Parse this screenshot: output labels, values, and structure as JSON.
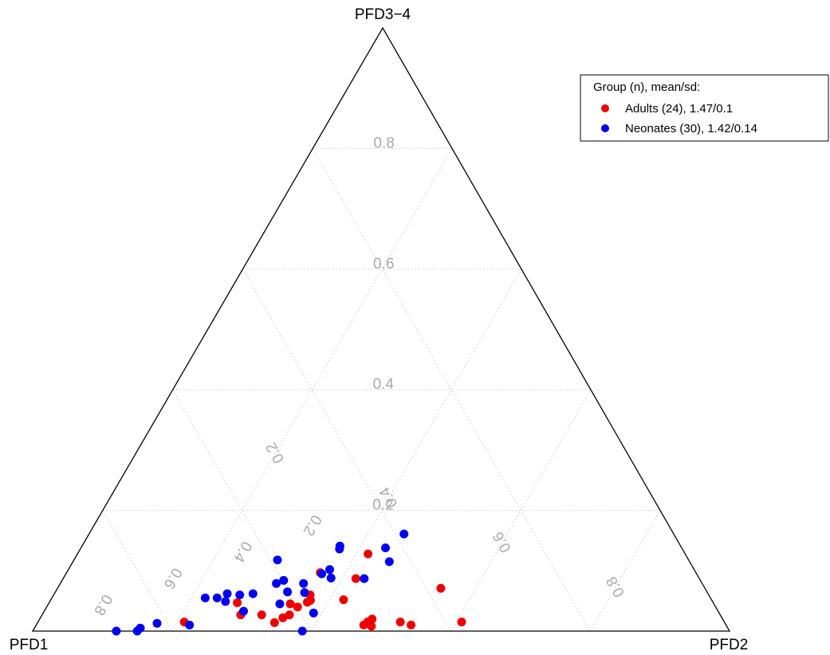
{
  "chart_data": {
    "type": "scatter",
    "subtype": "ternary",
    "vertex_labels": {
      "top": "PFD3−4",
      "left": "PFD1",
      "right": "PFD2"
    },
    "grid": true,
    "grid_levels": [
      0.2,
      0.4,
      0.6,
      0.8
    ],
    "axis_ticks": {
      "top_axis": [
        "0.2",
        "0.4",
        "0.6",
        "0.8"
      ],
      "right_axis": [
        "0.2",
        "0.4",
        "0.6",
        "0.8"
      ],
      "left_axis": [
        "0.2",
        "0.4",
        "0.6",
        "0.8"
      ]
    },
    "legend": {
      "title": "Group (n), mean/sd:",
      "position": "top-right",
      "entries": [
        {
          "label": "Adults (24), 1.47/0.1",
          "color": "#ee0000"
        },
        {
          "label": "Neonates (30), 1.42/0.14",
          "color": "#0000ee"
        }
      ]
    },
    "series": [
      {
        "name": "Adults (24), 1.47/0.1",
        "color": "#ee0000",
        "points": [
          {
            "pfd2": 0.21,
            "pfd34": 0.015
          },
          {
            "pfd2": 0.27,
            "pfd34": 0.047
          },
          {
            "pfd2": 0.285,
            "pfd34": 0.027
          },
          {
            "pfd2": 0.315,
            "pfd34": 0.027
          },
          {
            "pfd2": 0.34,
            "pfd34": 0.014
          },
          {
            "pfd2": 0.347,
            "pfd34": 0.045
          },
          {
            "pfd2": 0.348,
            "pfd34": 0.022
          },
          {
            "pfd2": 0.355,
            "pfd34": 0.027
          },
          {
            "pfd2": 0.36,
            "pfd34": 0.04
          },
          {
            "pfd2": 0.368,
            "pfd34": 0.06
          },
          {
            "pfd2": 0.37,
            "pfd34": 0.048
          },
          {
            "pfd2": 0.373,
            "pfd34": 0.051
          },
          {
            "pfd2": 0.364,
            "pfd34": 0.097
          },
          {
            "pfd2": 0.42,
            "pfd34": 0.087
          },
          {
            "pfd2": 0.42,
            "pfd34": 0.052
          },
          {
            "pfd2": 0.417,
            "pfd34": 0.128
          },
          {
            "pfd2": 0.47,
            "pfd34": 0.01
          },
          {
            "pfd2": 0.473,
            "pfd34": 0.015
          },
          {
            "pfd2": 0.477,
            "pfd34": 0.02
          },
          {
            "pfd2": 0.482,
            "pfd34": 0.008
          },
          {
            "pfd2": 0.52,
            "pfd34": 0.015
          },
          {
            "pfd2": 0.538,
            "pfd34": 0.01
          },
          {
            "pfd2": 0.55,
            "pfd34": 0.071
          },
          {
            "pfd2": 0.608,
            "pfd34": 0.015
          }
        ]
      },
      {
        "name": "Neonates (30), 1.42/0.14",
        "color": "#0000ee",
        "points": [
          {
            "pfd2": 0.12,
            "pfd34": 0.0
          },
          {
            "pfd2": 0.15,
            "pfd34": 0.0
          },
          {
            "pfd2": 0.152,
            "pfd34": 0.005
          },
          {
            "pfd2": 0.172,
            "pfd34": 0.013
          },
          {
            "pfd2": 0.22,
            "pfd34": 0.01
          },
          {
            "pfd2": 0.22,
            "pfd34": 0.055
          },
          {
            "pfd2": 0.237,
            "pfd34": 0.055
          },
          {
            "pfd2": 0.248,
            "pfd34": 0.062
          },
          {
            "pfd2": 0.252,
            "pfd34": 0.049
          },
          {
            "pfd2": 0.267,
            "pfd34": 0.06
          },
          {
            "pfd2": 0.285,
            "pfd34": 0.062
          },
          {
            "pfd2": 0.292,
            "pfd34": 0.118
          },
          {
            "pfd2": 0.286,
            "pfd34": 0.033
          },
          {
            "pfd2": 0.31,
            "pfd34": 0.079
          },
          {
            "pfd2": 0.318,
            "pfd34": 0.084
          },
          {
            "pfd2": 0.333,
            "pfd34": 0.065
          },
          {
            "pfd2": 0.332,
            "pfd34": 0.045
          },
          {
            "pfd2": 0.349,
            "pfd34": 0.079
          },
          {
            "pfd2": 0.358,
            "pfd34": 0.064
          },
          {
            "pfd2": 0.367,
            "pfd34": 0.095
          },
          {
            "pfd2": 0.37,
            "pfd34": 0.141
          },
          {
            "pfd2": 0.372,
            "pfd34": 0.136
          },
          {
            "pfd2": 0.375,
            "pfd34": 0.102
          },
          {
            "pfd2": 0.384,
            "pfd34": 0.088
          },
          {
            "pfd2": 0.388,
            "pfd34": 0.03
          },
          {
            "pfd2": 0.432,
            "pfd34": 0.087
          },
          {
            "pfd2": 0.437,
            "pfd34": 0.138
          },
          {
            "pfd2": 0.452,
            "pfd34": 0.161
          },
          {
            "pfd2": 0.454,
            "pfd34": 0.115
          },
          {
            "pfd2": 0.387,
            "pfd34": 0.0
          }
        ]
      }
    ]
  }
}
